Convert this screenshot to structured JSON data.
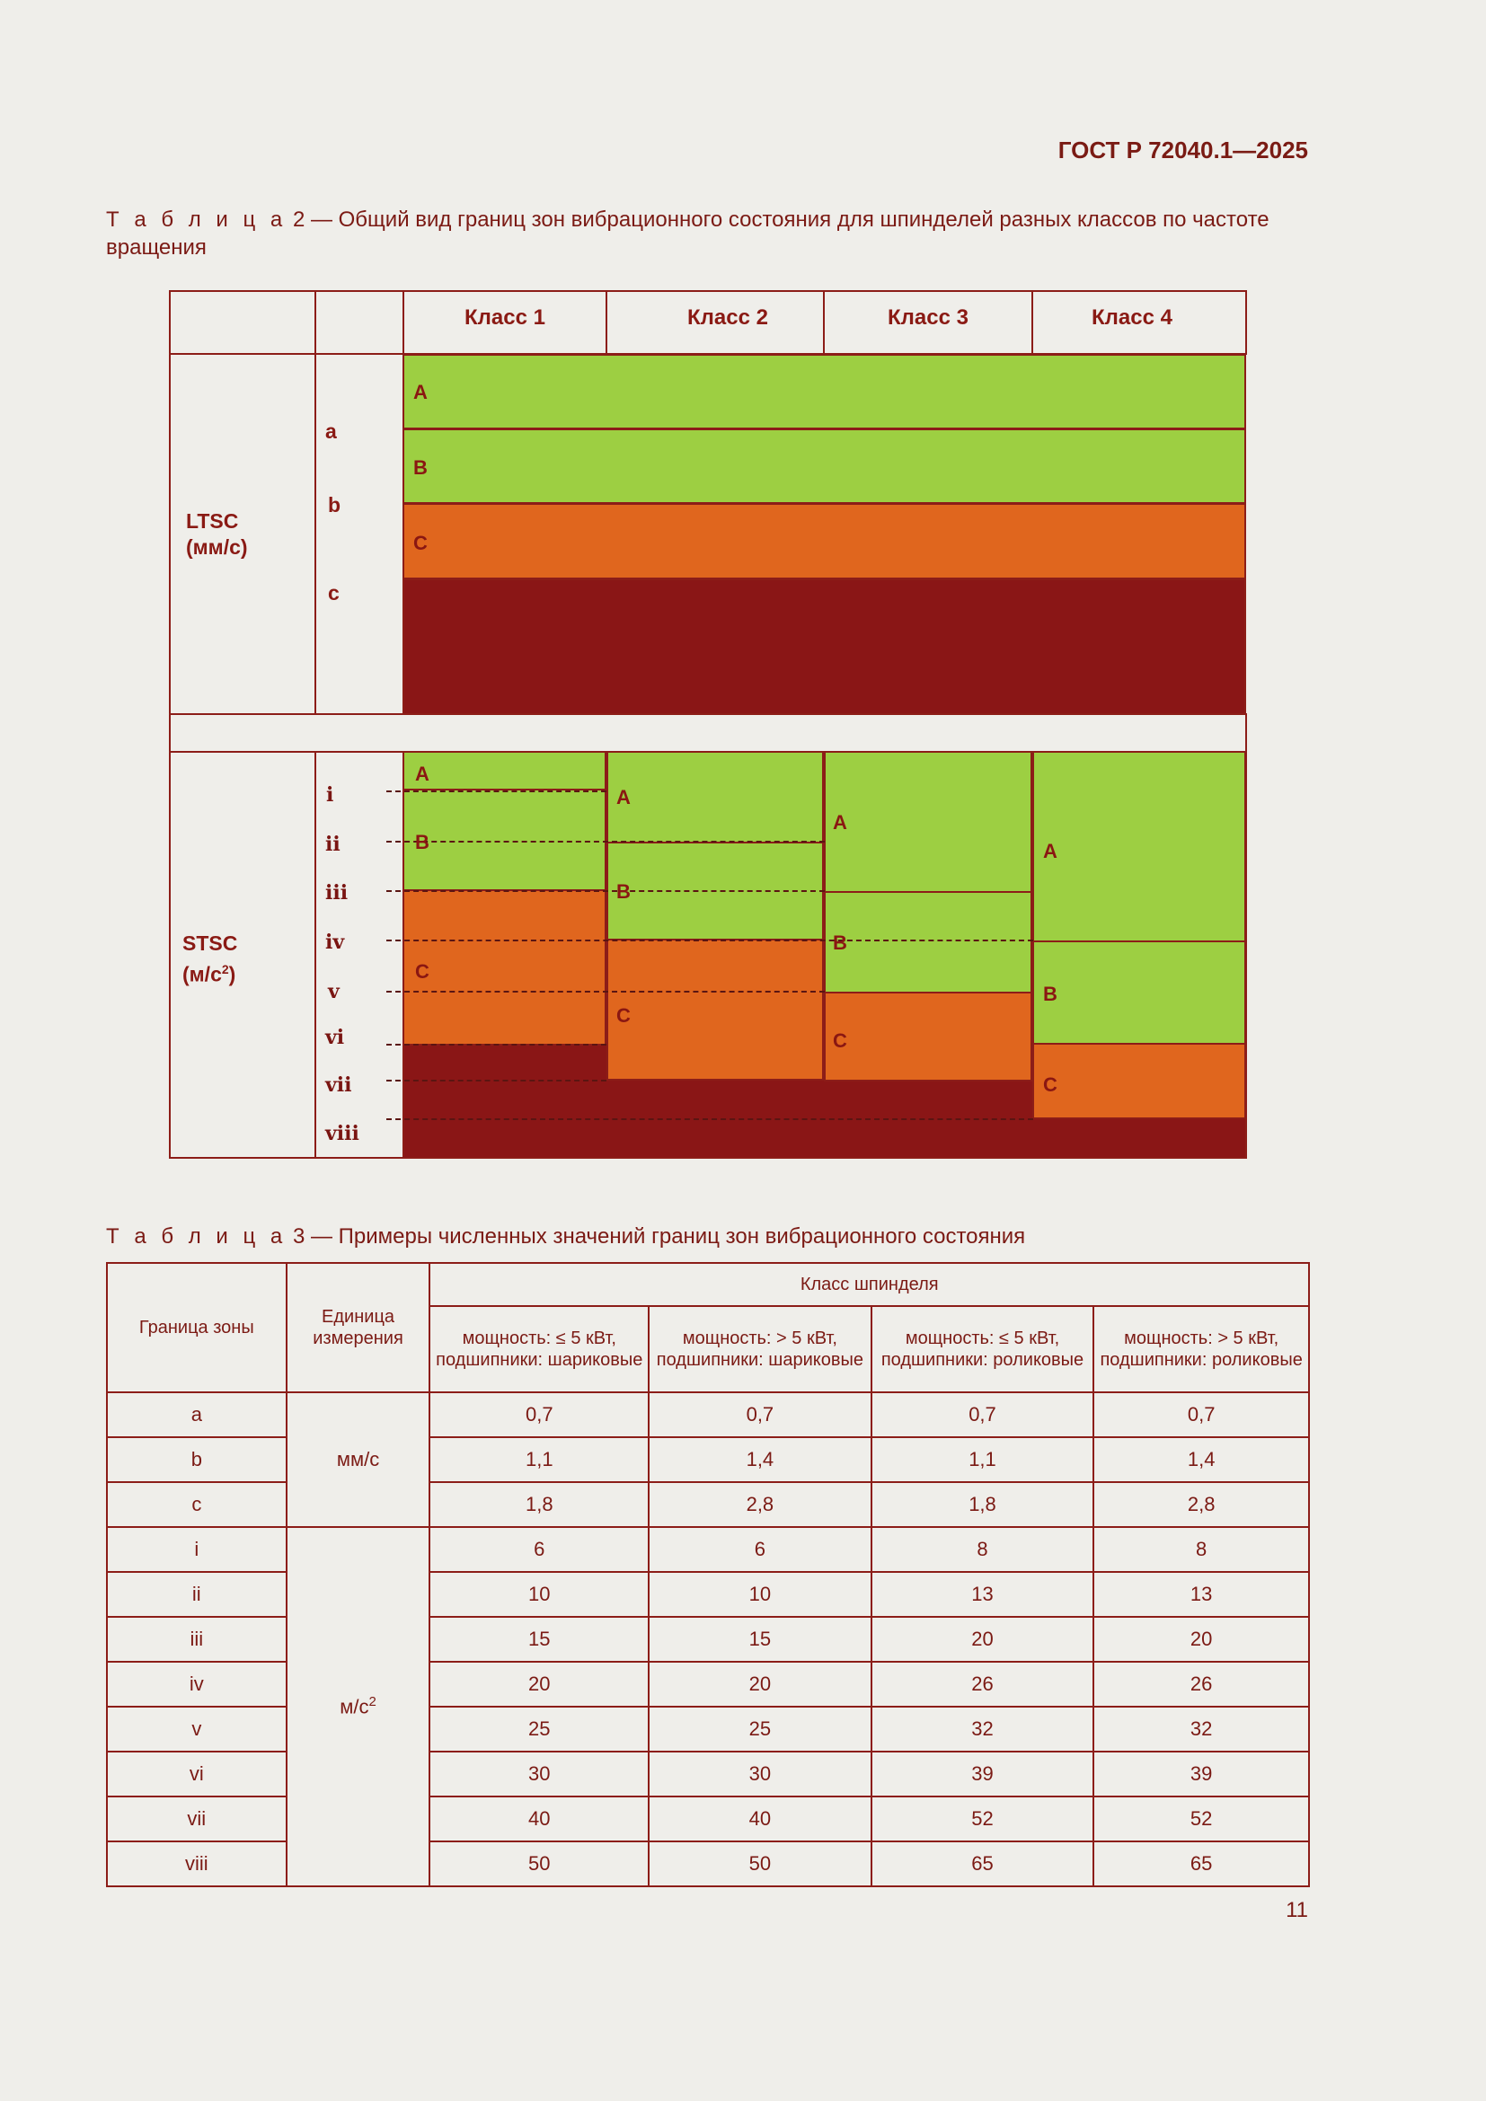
{
  "header": {
    "doc_code": "ГОСТ Р 72040.1—2025"
  },
  "table2": {
    "caption_prefix": "Т а б л и ц а",
    "caption_number": "2",
    "caption_text": "— Общий вид границ зон вибрационного состояния для шпинделей разных классов по частоте вращения",
    "classes": [
      "Класс 1",
      "Класс 2",
      "Класс 3",
      "Класс 4"
    ],
    "ltsc": {
      "label_line1": "LTSC",
      "label_line2": "(мм/с)",
      "boundaries": [
        "a",
        "b",
        "c"
      ],
      "zones": [
        "A",
        "B",
        "C"
      ]
    },
    "stsc": {
      "label_line1": "STSC",
      "label_line2": "(м/с",
      "label_sup": "2",
      "label_close": ")",
      "boundaries": [
        "i",
        "ii",
        "iii",
        "iv",
        "v",
        "vi",
        "vii",
        "viii"
      ],
      "zones": [
        "A",
        "B",
        "C"
      ]
    },
    "colors": {
      "good": "#9dcf42",
      "warn": "#e0661e",
      "bad": "#8a1616",
      "line": "#8c1d18"
    }
  },
  "table3": {
    "caption_prefix": "Т а б л и ц а",
    "caption_number": "3",
    "caption_text": "— Примеры численных значений границ зон вибрационного состояния",
    "col_zone": "Граница зоны",
    "col_unit": "Единица измерения",
    "col_class": "Класс шпинделя",
    "sub_cols": [
      "мощность: ≤ 5 кВт, подшипники: шариковые",
      "мощность: > 5 кВт, подшипники: шариковые",
      "мощность: ≤ 5 кВт, подшипники: роликовые",
      "мощность: > 5 кВт, подшипники: роликовые"
    ],
    "unit_mm": "мм/с",
    "unit_ms_base": "м/с",
    "unit_ms_sup": "2",
    "rows": [
      {
        "zone": "a",
        "v": [
          "0,7",
          "0,7",
          "0,7",
          "0,7"
        ]
      },
      {
        "zone": "b",
        "v": [
          "1,1",
          "1,4",
          "1,1",
          "1,4"
        ]
      },
      {
        "zone": "c",
        "v": [
          "1,8",
          "2,8",
          "1,8",
          "2,8"
        ]
      },
      {
        "zone": "i",
        "v": [
          "6",
          "6",
          "8",
          "8"
        ]
      },
      {
        "zone": "ii",
        "v": [
          "10",
          "10",
          "13",
          "13"
        ]
      },
      {
        "zone": "iii",
        "v": [
          "15",
          "15",
          "20",
          "20"
        ]
      },
      {
        "zone": "iv",
        "v": [
          "20",
          "20",
          "26",
          "26"
        ]
      },
      {
        "zone": "v",
        "v": [
          "25",
          "25",
          "32",
          "32"
        ]
      },
      {
        "zone": "vi",
        "v": [
          "30",
          "30",
          "39",
          "39"
        ]
      },
      {
        "zone": "vii",
        "v": [
          "40",
          "40",
          "52",
          "52"
        ]
      },
      {
        "zone": "viii",
        "v": [
          "50",
          "50",
          "65",
          "65"
        ]
      }
    ]
  },
  "footer": {
    "page_number": "11"
  }
}
